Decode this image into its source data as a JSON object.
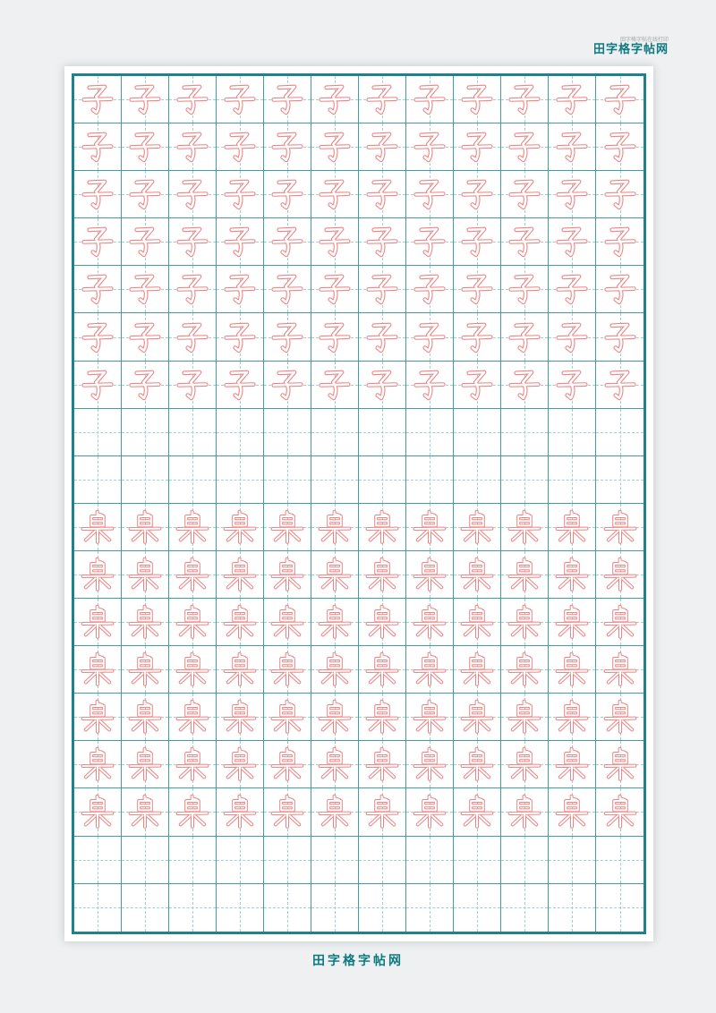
{
  "header": {
    "small_text": "田字格字帖在线打印",
    "brand_text": "田字格字帖网"
  },
  "footer": {
    "brand_text": "田字格字帖网"
  },
  "grid": {
    "style": "tianzige",
    "columns": 12,
    "rows_count": 18,
    "characters_practiced": [
      "子",
      "桌"
    ],
    "rows": [
      {
        "char": "子"
      },
      {
        "char": "子"
      },
      {
        "char": "子"
      },
      {
        "char": "子"
      },
      {
        "char": "子"
      },
      {
        "char": "子"
      },
      {
        "char": "子"
      },
      {
        "char": ""
      },
      {
        "char": ""
      },
      {
        "char": "桌"
      },
      {
        "char": "桌"
      },
      {
        "char": "桌"
      },
      {
        "char": "桌"
      },
      {
        "char": "桌"
      },
      {
        "char": "桌"
      },
      {
        "char": "桌"
      },
      {
        "char": ""
      },
      {
        "char": ""
      }
    ],
    "glyph_map": {
      "子": "glyph-zi",
      "桌": "glyph-zhuo"
    }
  },
  "colors": {
    "background": "#eef0f1",
    "paper": "#ffffff",
    "outer_border": "#1f828b",
    "inner_line": "#3f9fa3",
    "dashed_line": "#9ed2d2",
    "glyph_outline": "#ef8484",
    "glyph_fill": "#ffffff",
    "watermark_teal": "#0d7a80"
  }
}
